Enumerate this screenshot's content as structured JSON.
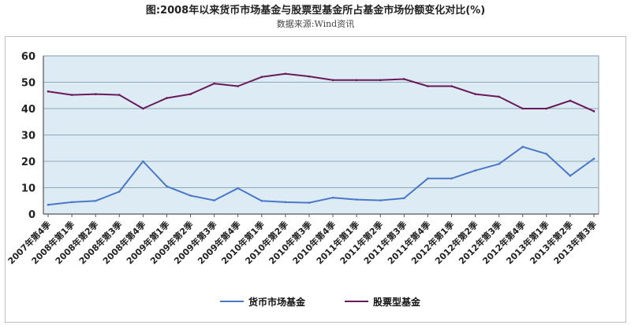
{
  "title": "图:2008年以来货币市场基金与股票型基金所占基金市场份额变化对比(%)",
  "subtitle": "数据来源:Wind资讯",
  "colors": {
    "money": "#4a78c8",
    "equity": "#6a1a5a",
    "plot_bg": "#dcebf4",
    "grid": "#8fa8b8"
  },
  "chart_data": {
    "type": "line",
    "ylim": [
      0,
      60
    ],
    "yticks": [
      0,
      10,
      20,
      30,
      40,
      50,
      60
    ],
    "grid": true,
    "legend": "bottom",
    "categories": [
      "2007年第4季",
      "2008年第1季",
      "2008年第2季",
      "2008年第3季",
      "2008年第4季",
      "2009年第1季",
      "2009年第2季",
      "2009年第3季",
      "2009年第4季",
      "2010年第1季",
      "2010年第2季",
      "2010年第3季",
      "2010年第4季",
      "2011年第1季",
      "2011年第2季",
      "2011年第3季",
      "2011年第4季",
      "2012年第1季",
      "2012年第2季",
      "2012年第3季",
      "2012年第4季",
      "2013年第1季",
      "2013年第2季",
      "2013年第3季"
    ],
    "series": [
      {
        "name": "货币市场基金",
        "color": "#4a78c8",
        "values": [
          3.5,
          4.5,
          5,
          8.5,
          20,
          10.5,
          7,
          5.2,
          9.8,
          5,
          4.5,
          4.3,
          6.2,
          5.5,
          5.2,
          6,
          13.5,
          13.5,
          16.5,
          19,
          25.5,
          22.8,
          14.5,
          21
        ]
      },
      {
        "name": "股票型基金",
        "color": "#6a1a5a",
        "values": [
          46.5,
          45.2,
          45.5,
          45.2,
          40,
          44,
          45.5,
          49.5,
          48.5,
          52,
          53.2,
          52.2,
          50.8,
          50.8,
          50.8,
          51.2,
          48.5,
          48.5,
          45.5,
          44.5,
          40,
          40,
          43,
          39
        ]
      }
    ]
  }
}
